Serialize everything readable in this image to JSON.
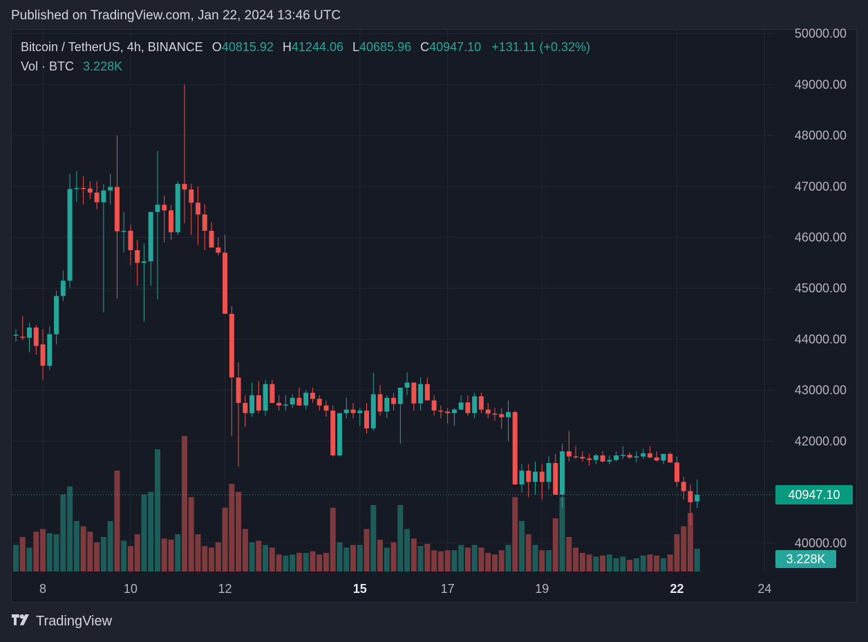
{
  "header": {
    "published": "Published on TradingView.com, Jan 22, 2024 13:46 UTC"
  },
  "legend": {
    "symbol": "Bitcoin / TetherUS, 4h, BINANCE",
    "open_label": "O",
    "open": "40815.92",
    "high_label": "H",
    "high": "41244.06",
    "low_label": "L",
    "low": "40685.96",
    "close_label": "C",
    "close": "40947.10",
    "change": "+131.11 (+0.32%)",
    "vol_label": "Vol · BTC",
    "vol_value": "3.228K"
  },
  "footer": {
    "brand": "TradingView",
    "logo_icon": "tradingview-logo-icon"
  },
  "colors": {
    "up": "#26a69a",
    "down": "#ef5350",
    "vol_up": "#1e5c5a",
    "vol_down": "#7e3a3d",
    "grid": "#232732",
    "axis_text": "#b2b5be",
    "price_tag": "#089981"
  },
  "chart_data": {
    "type": "candlestick",
    "symbol": "Bitcoin / TetherUS",
    "interval": "4h",
    "exchange": "BINANCE",
    "y_axis": {
      "ticks": [
        "40000.00",
        "41000.00",
        "42000.00",
        "43000.00",
        "44000.00",
        "45000.00",
        "46000.00",
        "47000.00",
        "48000.00",
        "49000.00",
        "50000.00"
      ],
      "range": [
        39400,
        50050
      ]
    },
    "x_axis": {
      "ticks": [
        {
          "label": "8",
          "bold": false
        },
        {
          "label": "10",
          "bold": false
        },
        {
          "label": "12",
          "bold": false
        },
        {
          "label": "15",
          "bold": true
        },
        {
          "label": "17",
          "bold": false
        },
        {
          "label": "19",
          "bold": false
        },
        {
          "label": "22",
          "bold": true
        },
        {
          "label": "24",
          "bold": false
        }
      ]
    },
    "last_price_label": "40947.10",
    "last_price": 40947.1,
    "last_volume_label": "3.228K",
    "volume_max": 2.6,
    "candles": [
      [
        44080,
        44200,
        43950,
        44090,
        0.5
      ],
      [
        44050,
        44450,
        43980,
        44030,
        0.65
      ],
      [
        44030,
        44330,
        43750,
        44230,
        0.45
      ],
      [
        44230,
        44280,
        43700,
        43870,
        0.75
      ],
      [
        43900,
        44200,
        43200,
        43480,
        0.8
      ],
      [
        43480,
        44250,
        43400,
        44100,
        0.72
      ],
      [
        44100,
        44950,
        43900,
        44850,
        0.7
      ],
      [
        44850,
        45350,
        44750,
        45150,
        1.45
      ],
      [
        45150,
        47250,
        45000,
        46950,
        1.6
      ],
      [
        46950,
        47300,
        46700,
        46970,
        0.95
      ],
      [
        46970,
        47200,
        46650,
        46960,
        0.85
      ],
      [
        46960,
        47100,
        46750,
        46880,
        0.75
      ],
      [
        46880,
        47100,
        46550,
        46690,
        0.55
      ],
      [
        46690,
        47050,
        44530,
        46920,
        0.65
      ],
      [
        46920,
        47250,
        46650,
        46990,
        0.95
      ],
      [
        46990,
        48000,
        44800,
        46120,
        1.9
      ],
      [
        46120,
        46500,
        45700,
        46130,
        0.58
      ],
      [
        46130,
        46250,
        45450,
        45750,
        0.48
      ],
      [
        45750,
        45950,
        45050,
        45500,
        0.7
      ],
      [
        45500,
        45880,
        44350,
        45530,
        1.45
      ],
      [
        45530,
        46500,
        45050,
        46500,
        1.5
      ],
      [
        46500,
        47700,
        44780,
        46640,
        2.3
      ],
      [
        46640,
        46820,
        45900,
        46530,
        0.62
      ],
      [
        46530,
        46640,
        45950,
        46100,
        0.6
      ],
      [
        46100,
        47100,
        46050,
        47050,
        0.7
      ],
      [
        47050,
        49000,
        46280,
        46940,
        2.55
      ],
      [
        46940,
        47050,
        46050,
        46680,
        1.4
      ],
      [
        46680,
        47000,
        45850,
        46450,
        0.7
      ],
      [
        46450,
        46650,
        45750,
        46130,
        0.48
      ],
      [
        46130,
        46300,
        45850,
        45800,
        0.45
      ],
      [
        45800,
        46000,
        45650,
        45700,
        0.55
      ],
      [
        45700,
        46050,
        44500,
        44500,
        1.2
      ],
      [
        44500,
        44650,
        42100,
        43250,
        1.65
      ],
      [
        43250,
        43550,
        41500,
        42750,
        1.5
      ],
      [
        42750,
        42900,
        42280,
        42550,
        0.8
      ],
      [
        42550,
        43150,
        42480,
        42900,
        0.55
      ],
      [
        42900,
        43180,
        42550,
        42600,
        0.58
      ],
      [
        42600,
        43200,
        42500,
        43120,
        0.5
      ],
      [
        43120,
        43200,
        42750,
        42750,
        0.45
      ],
      [
        42750,
        42900,
        42600,
        42700,
        0.32
      ],
      [
        42700,
        42900,
        42600,
        42720,
        0.3
      ],
      [
        42720,
        42920,
        42650,
        42850,
        0.32
      ],
      [
        42850,
        43050,
        42700,
        42700,
        0.35
      ],
      [
        42700,
        43000,
        42620,
        42950,
        0.35
      ],
      [
        42950,
        43050,
        42750,
        42830,
        0.38
      ],
      [
        42830,
        42900,
        42600,
        42700,
        0.32
      ],
      [
        42700,
        42800,
        42480,
        42600,
        0.35
      ],
      [
        42600,
        42700,
        41700,
        41720,
        1.2
      ],
      [
        41720,
        42550,
        41700,
        42550,
        0.55
      ],
      [
        42550,
        42850,
        42450,
        42620,
        0.45
      ],
      [
        42620,
        42750,
        42450,
        42550,
        0.5
      ],
      [
        42550,
        42650,
        42300,
        42600,
        0.5
      ],
      [
        42600,
        42750,
        42150,
        42250,
        0.8
      ],
      [
        42250,
        43350,
        42200,
        42920,
        1.25
      ],
      [
        42920,
        43100,
        42500,
        42580,
        0.6
      ],
      [
        42580,
        42900,
        42450,
        42850,
        0.45
      ],
      [
        42850,
        42950,
        42600,
        42730,
        0.55
      ],
      [
        42730,
        43050,
        41950,
        43050,
        1.25
      ],
      [
        43050,
        43350,
        42900,
        43150,
        0.8
      ],
      [
        43150,
        43150,
        42600,
        42740,
        0.62
      ],
      [
        42740,
        43250,
        42600,
        43120,
        0.48
      ],
      [
        43120,
        43250,
        42800,
        42800,
        0.52
      ],
      [
        42800,
        42900,
        42500,
        42600,
        0.4
      ],
      [
        42600,
        42700,
        42450,
        42580,
        0.38
      ],
      [
        42580,
        42650,
        42350,
        42550,
        0.4
      ],
      [
        42550,
        42650,
        42300,
        42620,
        0.4
      ],
      [
        42620,
        42900,
        42600,
        42760,
        0.5
      ],
      [
        42760,
        42900,
        42500,
        42550,
        0.45
      ],
      [
        42550,
        42950,
        42450,
        42880,
        0.5
      ],
      [
        42880,
        42950,
        42550,
        42620,
        0.45
      ],
      [
        42620,
        42750,
        42450,
        42540,
        0.35
      ],
      [
        42540,
        42650,
        42400,
        42530,
        0.32
      ],
      [
        42530,
        42650,
        42250,
        42470,
        0.4
      ],
      [
        42470,
        42800,
        42000,
        42570,
        0.5
      ],
      [
        42570,
        42600,
        41150,
        41150,
        1.4
      ],
      [
        41150,
        41550,
        41000,
        41420,
        0.95
      ],
      [
        41420,
        41550,
        40900,
        41200,
        0.7
      ],
      [
        41200,
        41600,
        40950,
        41400,
        0.5
      ],
      [
        41400,
        41550,
        40850,
        41200,
        0.4
      ],
      [
        41200,
        41700,
        41050,
        41570,
        0.4
      ],
      [
        41570,
        41750,
        40950,
        40950,
        1.0
      ],
      [
        40950,
        41950,
        40700,
        41800,
        1.4
      ],
      [
        41800,
        42200,
        41600,
        41700,
        0.65
      ],
      [
        41700,
        41900,
        41650,
        41690,
        0.45
      ],
      [
        41690,
        41800,
        41600,
        41660,
        0.35
      ],
      [
        41660,
        41750,
        41520,
        41630,
        0.32
      ],
      [
        41630,
        41750,
        41550,
        41720,
        0.28
      ],
      [
        41720,
        41800,
        41580,
        41600,
        0.3
      ],
      [
        41600,
        41720,
        41550,
        41630,
        0.32
      ],
      [
        41630,
        41800,
        41600,
        41720,
        0.25
      ],
      [
        41720,
        41900,
        41650,
        41730,
        0.28
      ],
      [
        41730,
        41780,
        41650,
        41680,
        0.22
      ],
      [
        41680,
        41800,
        41580,
        41700,
        0.25
      ],
      [
        41700,
        41850,
        41650,
        41760,
        0.3
      ],
      [
        41760,
        41900,
        41660,
        41680,
        0.32
      ],
      [
        41680,
        41800,
        41600,
        41620,
        0.3
      ],
      [
        41620,
        41750,
        41550,
        41750,
        0.25
      ],
      [
        41750,
        41780,
        41580,
        41580,
        0.32
      ],
      [
        41580,
        41700,
        41100,
        41200,
        0.7
      ],
      [
        41200,
        41300,
        40850,
        41020,
        0.85
      ],
      [
        41020,
        41150,
        40350,
        40800,
        1.1
      ],
      [
        40815.92,
        41244.06,
        40685.96,
        40947.1,
        0.43
      ]
    ]
  }
}
